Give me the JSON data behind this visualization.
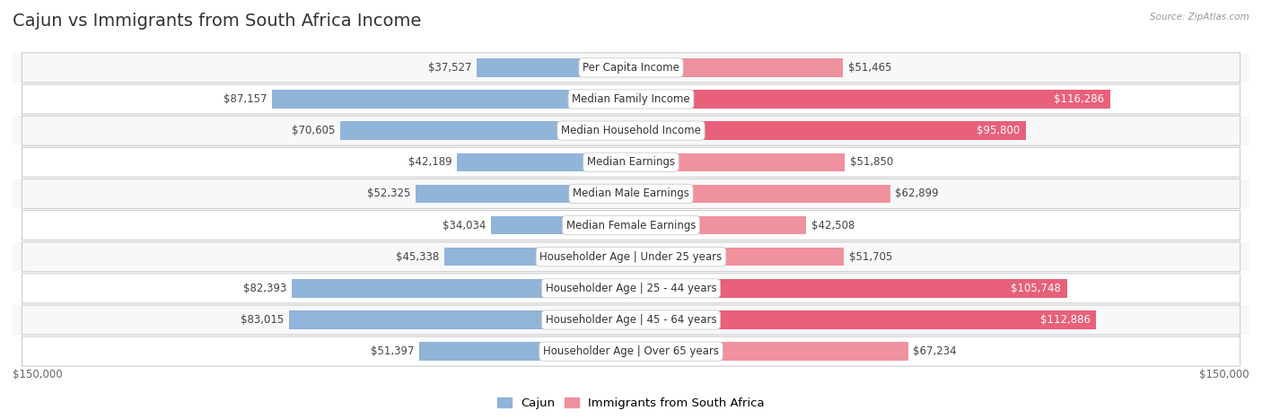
{
  "title": "Cajun vs Immigrants from South Africa Income",
  "source": "Source: ZipAtlas.com",
  "categories": [
    "Per Capita Income",
    "Median Family Income",
    "Median Household Income",
    "Median Earnings",
    "Median Male Earnings",
    "Median Female Earnings",
    "Householder Age | Under 25 years",
    "Householder Age | 25 - 44 years",
    "Householder Age | 45 - 64 years",
    "Householder Age | Over 65 years"
  ],
  "cajun_values": [
    37527,
    87157,
    70605,
    42189,
    52325,
    34034,
    45338,
    82393,
    83015,
    51397
  ],
  "immigrant_values": [
    51465,
    116286,
    95800,
    51850,
    62899,
    42508,
    51705,
    105748,
    112886,
    67234
  ],
  "cajun_labels": [
    "$37,527",
    "$87,157",
    "$70,605",
    "$42,189",
    "$52,325",
    "$34,034",
    "$45,338",
    "$82,393",
    "$83,015",
    "$51,397"
  ],
  "immigrant_labels": [
    "$51,465",
    "$116,286",
    "$95,800",
    "$51,850",
    "$62,899",
    "$42,508",
    "$51,705",
    "$105,748",
    "$112,886",
    "$67,234"
  ],
  "cajun_color": "#91b4d9",
  "immigrant_color": "#f0919e",
  "cajun_color_strong": "#5b8ec4",
  "immigrant_color_strong": "#e8607a",
  "max_value": 150000,
  "x_label_left": "$150,000",
  "x_label_right": "$150,000",
  "background_color": "#ffffff",
  "row_bg_even": "#f8f8fa",
  "row_bg_odd": "#ffffff",
  "bar_height": 0.58,
  "title_fontsize": 14,
  "label_fontsize": 8.5,
  "category_fontsize": 8.5,
  "legend_fontsize": 9.5,
  "large_threshold": 90000,
  "medium_threshold": 60000
}
